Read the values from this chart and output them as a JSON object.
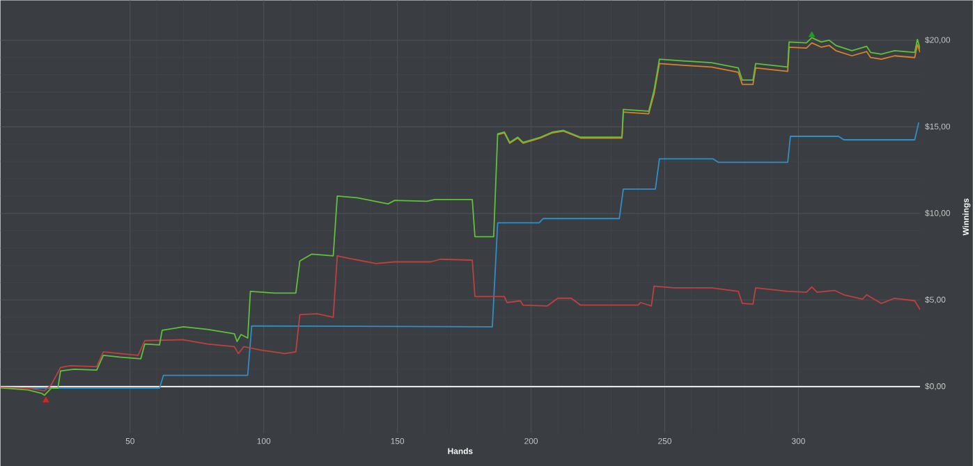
{
  "chart_data": {
    "type": "line",
    "xlabel": "Hands",
    "ylabel": "Winnings",
    "xlim": [
      1.5,
      345.5
    ],
    "ylim": [
      -2.7,
      22.3
    ],
    "xticks": [
      50,
      100,
      150,
      200,
      250,
      300
    ],
    "yticks": [
      {
        "value": 0,
        "label": "$0,00"
      },
      {
        "value": 5,
        "label": "$5,00"
      },
      {
        "value": 10,
        "label": "$10,00"
      },
      {
        "value": 15,
        "label": "$15,00"
      },
      {
        "value": 20,
        "label": "$20,00"
      }
    ],
    "grid": true,
    "ref_lines": [
      {
        "axis": "y",
        "value": 0,
        "color": "#ffffff"
      }
    ],
    "series": [
      {
        "color": "#2f8fc9",
        "x": [
          11.8,
          61,
          62.5,
          94,
          95.5,
          185.5,
          187.5,
          203,
          204.5,
          233,
          234.5,
          246.5,
          248,
          268,
          270,
          296,
          297,
          315,
          317,
          343.5,
          345
        ],
        "values": [
          -0.1,
          -0.1,
          0.65,
          0.65,
          3.5,
          3.45,
          9.45,
          9.45,
          9.7,
          9.7,
          11.4,
          11.4,
          13.15,
          13.15,
          12.95,
          12.95,
          14.45,
          14.45,
          14.25,
          14.25,
          15.25
        ]
      },
      {
        "color": "#c0403f",
        "x": [
          1.5,
          11.8,
          18,
          20.5,
          24,
          27.5,
          37.5,
          40,
          53,
          55.5,
          70,
          79,
          89,
          90.5,
          92.5,
          99,
          108,
          112,
          113.5,
          120,
          126,
          127.5,
          132,
          142,
          149,
          162.5,
          166,
          178,
          179,
          190,
          191,
          196,
          197,
          206,
          210,
          215,
          218.5,
          240,
          241,
          245,
          246,
          253.5,
          267.5,
          277.5,
          279,
          283,
          284,
          296,
          303,
          305,
          307,
          313.5,
          317,
          324,
          325.5,
          331,
          336,
          343.5,
          345.5
        ],
        "values": [
          -0.05,
          -0.1,
          -0.25,
          0.1,
          1.1,
          1.2,
          1.15,
          2.0,
          1.8,
          2.65,
          2.7,
          2.45,
          2.3,
          1.9,
          2.3,
          2.1,
          1.9,
          2.0,
          4.15,
          4.2,
          4.0,
          7.55,
          7.4,
          7.1,
          7.2,
          7.2,
          7.35,
          7.3,
          5.2,
          5.2,
          4.85,
          4.95,
          4.7,
          4.65,
          5.1,
          5.1,
          4.7,
          4.7,
          4.85,
          4.65,
          5.8,
          5.7,
          5.7,
          5.5,
          4.8,
          4.75,
          5.7,
          5.5,
          5.45,
          5.75,
          5.45,
          5.55,
          5.3,
          5.05,
          5.3,
          4.8,
          5.1,
          4.95,
          4.45
        ]
      },
      {
        "color": "#d9822b",
        "x": [
          187.5,
          190,
          192,
          195,
          197,
          203.5,
          208,
          212,
          218.5,
          234,
          234.5,
          244,
          246,
          248,
          257,
          267.5,
          277.5,
          279,
          283,
          284,
          296,
          296.5,
          303,
          305,
          308.5,
          311.5,
          314,
          320,
          325.5,
          327,
          331,
          336,
          343.5,
          344.5,
          345.5
        ],
        "values": [
          14.55,
          14.65,
          14.05,
          14.35,
          14.05,
          14.35,
          14.65,
          14.75,
          14.35,
          14.35,
          15.85,
          15.75,
          16.9,
          18.65,
          18.55,
          18.45,
          18.15,
          17.45,
          17.45,
          18.4,
          18.2,
          19.6,
          19.55,
          19.85,
          19.6,
          19.7,
          19.4,
          19.1,
          19.35,
          19.0,
          18.9,
          19.1,
          19.0,
          19.75,
          19.3
        ]
      },
      {
        "color": "#5ec23a",
        "x": [
          1.5,
          11.8,
          17,
          18,
          20.5,
          23,
          24,
          29,
          37.5,
          40,
          46,
          54,
          55.5,
          61,
          62,
          70,
          79,
          89,
          90,
          91.5,
          94,
          95,
          104,
          112,
          113.5,
          118,
          126,
          127.5,
          135,
          146.5,
          149,
          161,
          164,
          178,
          179,
          186,
          187.5,
          190,
          192,
          195,
          197,
          203.5,
          208,
          212,
          218.5,
          234,
          234.5,
          244,
          246,
          248,
          257,
          267.5,
          277.5,
          279,
          283,
          284,
          296,
          296.5,
          303,
          305,
          308.5,
          311.5,
          314,
          320,
          325.5,
          327,
          331,
          336,
          343.5,
          344.5,
          345.5
        ],
        "values": [
          -0.08,
          -0.2,
          -0.4,
          -0.5,
          -0.1,
          -0.1,
          0.9,
          1.0,
          0.95,
          1.8,
          1.7,
          1.6,
          2.45,
          2.4,
          3.25,
          3.45,
          3.3,
          3.05,
          2.6,
          3.0,
          2.8,
          5.5,
          5.4,
          5.4,
          7.25,
          7.65,
          7.55,
          11.0,
          10.9,
          10.55,
          10.75,
          10.7,
          10.8,
          10.8,
          8.65,
          8.65,
          14.6,
          14.7,
          14.1,
          14.4,
          14.1,
          14.4,
          14.7,
          14.8,
          14.4,
          14.4,
          16.0,
          15.9,
          17.1,
          18.9,
          18.8,
          18.7,
          18.4,
          17.7,
          17.7,
          18.65,
          18.45,
          19.9,
          19.85,
          20.15,
          19.9,
          20.0,
          19.7,
          19.4,
          19.65,
          19.3,
          19.2,
          19.4,
          19.3,
          20.05,
          19.5
        ]
      },
      {
        "type": "scatter",
        "color": "#e02020",
        "marker": "triangle",
        "x": [
          18.5
        ],
        "values": [
          -0.8
        ]
      },
      {
        "type": "scatter",
        "color": "#20a020",
        "marker": "triangle",
        "x": [
          305
        ],
        "values": [
          20.3
        ]
      }
    ]
  }
}
